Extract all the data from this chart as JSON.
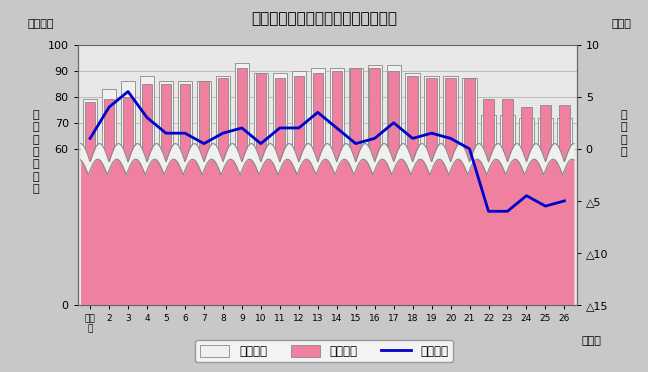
{
  "title": "転入・転出者数及び社会動態の推移",
  "years": [
    "平成\n元",
    "2",
    "3",
    "4",
    "5",
    "6",
    "7",
    "8",
    "9",
    "10",
    "11",
    "12",
    "13",
    "14",
    "15",
    "16",
    "17",
    "18",
    "19",
    "20",
    "21",
    "22",
    "23",
    "24",
    "25",
    "26"
  ],
  "transfer_in": [
    79,
    83,
    86,
    88,
    86,
    86,
    86,
    88,
    93,
    89,
    89,
    90,
    91,
    91,
    91,
    92,
    92,
    89,
    88,
    88,
    87,
    73,
    73,
    72,
    72,
    72
  ],
  "transfer_out": [
    78,
    79,
    80,
    85,
    85,
    85,
    86,
    87,
    91,
    89,
    87,
    88,
    89,
    90,
    91,
    91,
    90,
    88,
    87,
    87,
    87,
    79,
    79,
    76,
    77,
    77
  ],
  "social_change": [
    1.0,
    4.0,
    5.5,
    3.0,
    1.5,
    1.5,
    0.5,
    1.5,
    2.0,
    0.5,
    2.0,
    2.0,
    3.5,
    2.0,
    0.5,
    1.0,
    2.5,
    1.0,
    1.5,
    1.0,
    0.0,
    -6.0,
    -6.0,
    -4.5,
    -5.5,
    -5.0
  ],
  "bar_color_in": "#f0f0f0",
  "bar_color_out": "#f080a0",
  "bar_edge_color": "#888888",
  "line_color": "#0000cc",
  "bg_color": "#e8e8e8",
  "fig_bg": "#c8c8c8",
  "grid_color": "#aaaaaa",
  "legend_labels": [
    "転入者数",
    "転出者数",
    "社会動態"
  ],
  "ylabel_left_top": "（千人）",
  "ylabel_right_top": "（千）",
  "ylabel_left_vert": "転\n入\n・\n転\n出\n者\n数",
  "ylabel_right_vert": "社\n会\n動\n態",
  "xlabel_right": "（年）",
  "yticks_left": [
    0,
    60,
    70,
    80,
    90,
    100
  ],
  "yticks_right": [
    10,
    5,
    0,
    -5,
    -10,
    -15
  ],
  "ytick_right_labels": [
    "10",
    "5",
    "0",
    "△5",
    "△10",
    "△15"
  ],
  "ylim_left": [
    0,
    100
  ],
  "ylim_right": [
    -15,
    10
  ]
}
